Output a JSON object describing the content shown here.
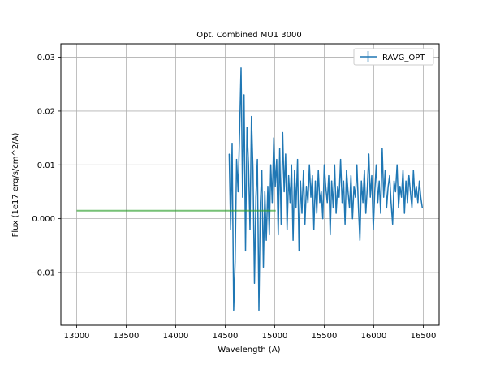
{
  "chart_data": {
    "type": "line",
    "title": "Opt. Combined MU1 3000",
    "xlabel": "Wavelength (A)",
    "ylabel": "Flux (1e17 erg/s/cm^2/A)",
    "xlim": [
      12840,
      16660
    ],
    "ylim": [
      -0.0198,
      0.0325
    ],
    "xticks": [
      13000,
      13500,
      14000,
      14500,
      15000,
      15500,
      16000,
      16500
    ],
    "xtick_labels": [
      "13000",
      "13500",
      "14000",
      "14500",
      "15000",
      "15500",
      "16000",
      "16500"
    ],
    "yticks": [
      -0.01,
      0.0,
      0.01,
      0.02,
      0.03
    ],
    "ytick_labels": [
      "−0.01",
      "0.000",
      "0.01",
      "0.02",
      "0.03"
    ],
    "grid": true,
    "legend": {
      "position": "top-right",
      "entries": [
        "RAVG_OPT"
      ]
    },
    "series": [
      {
        "name": "RAVG_OPT",
        "color": "#1f77b4",
        "style": "errorbar-line",
        "x": [
          14540,
          14555,
          14570,
          14585,
          14600,
          14615,
          14630,
          14645,
          14660,
          14675,
          14690,
          14705,
          14720,
          14735,
          14750,
          14765,
          14780,
          14795,
          14810,
          14825,
          14840,
          14855,
          14870,
          14885,
          14900,
          14915,
          14930,
          14945,
          14960,
          14975,
          14990,
          15005,
          15020,
          15035,
          15050,
          15065,
          15080,
          15095,
          15110,
          15125,
          15140,
          15155,
          15170,
          15185,
          15200,
          15215,
          15230,
          15245,
          15260,
          15275,
          15290,
          15305,
          15320,
          15335,
          15350,
          15365,
          15380,
          15395,
          15410,
          15425,
          15440,
          15455,
          15470,
          15485,
          15500,
          15515,
          15530,
          15545,
          15560,
          15575,
          15590,
          15605,
          15620,
          15635,
          15650,
          15665,
          15680,
          15695,
          15710,
          15725,
          15740,
          15755,
          15770,
          15785,
          15800,
          15815,
          15830,
          15845,
          15860,
          15875,
          15890,
          15905,
          15920,
          15935,
          15950,
          15965,
          15980,
          15995,
          16010,
          16025,
          16040,
          16055,
          16070,
          16085,
          16100,
          16115,
          16130,
          16145,
          16160,
          16175,
          16190,
          16205,
          16220,
          16235,
          16250,
          16265,
          16280,
          16295,
          16310,
          16325,
          16340,
          16355,
          16370,
          16385,
          16400,
          16415,
          16430,
          16445,
          16460,
          16475,
          16490
        ],
        "y": [
          0.012,
          -0.002,
          0.014,
          -0.017,
          -0.008,
          0.011,
          0.005,
          0.016,
          0.028,
          0.004,
          0.023,
          -0.006,
          0.017,
          0.01,
          -0.002,
          0.019,
          0.009,
          -0.012,
          0.004,
          0.011,
          -0.017,
          0.003,
          0.009,
          -0.009,
          0.005,
          -0.004,
          0.006,
          -0.003,
          0.01,
          0.003,
          0.015,
          0.006,
          0.011,
          -0.003,
          0.013,
          -0.001,
          0.016,
          0.005,
          0.012,
          -0.002,
          0.008,
          0.003,
          0.01,
          -0.004,
          0.009,
          0.002,
          0.011,
          -0.006,
          0.007,
          0.001,
          0.009,
          -0.001,
          0.006,
          0.003,
          0.01,
          0.004,
          0.008,
          -0.002,
          0.007,
          0.001,
          0.009,
          0.003,
          0.005,
          0.0,
          0.01,
          0.006,
          0.003,
          0.008,
          -0.003,
          0.007,
          0.002,
          0.01,
          0.001,
          0.006,
          0.004,
          0.011,
          0.003,
          0.007,
          -0.001,
          0.009,
          0.005,
          0.002,
          0.008,
          0.0,
          0.006,
          0.004,
          0.01,
          0.002,
          -0.004,
          0.007,
          0.003,
          0.009,
          0.001,
          0.006,
          0.012,
          0.004,
          0.008,
          -0.002,
          0.005,
          0.01,
          0.003,
          0.007,
          0.001,
          0.013,
          0.004,
          0.009,
          0.002,
          0.006,
          0.008,
          0.003,
          -0.001,
          0.007,
          0.005,
          0.01,
          0.002,
          0.006,
          0.004,
          0.009,
          0.001,
          0.007,
          0.003,
          0.008,
          0.005,
          0.002,
          0.009,
          0.004,
          0.006,
          0.003,
          0.007,
          0.004,
          0.002
        ]
      },
      {
        "color": "#2ca02c",
        "style": "line",
        "x": [
          13000,
          15010
        ],
        "y": [
          0.00148,
          0.00148
        ]
      }
    ]
  }
}
